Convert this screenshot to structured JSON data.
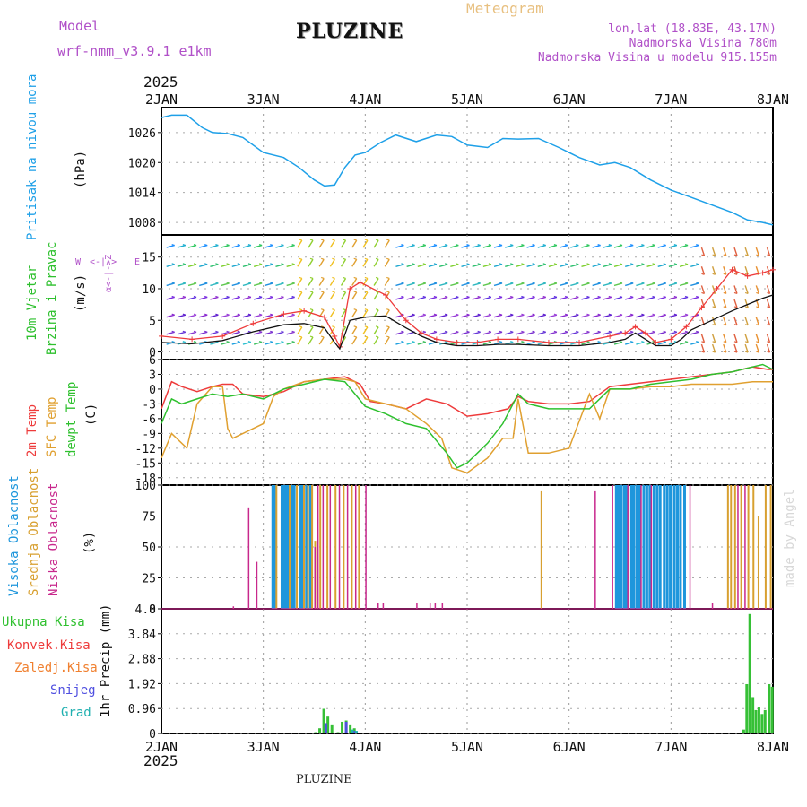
{
  "header": {
    "model_label": "Model",
    "model_name": "wrf-nmm_v3.9.1  e1km",
    "title": "PLUZINE",
    "product": "Meteogram",
    "lonlat": "lon,lat (18.83E, 43.17N)",
    "elevation": "Nadmorska Visina 780m",
    "model_elevation": "Nadmorska Visina u modelu 915.155m",
    "footer_title": "PLUZINE",
    "watermark": "made by Angel"
  },
  "time_axis": {
    "year": "2025",
    "ticks": [
      "2JAN",
      "3JAN",
      "4JAN",
      "5JAN",
      "6JAN",
      "7JAN",
      "8JAN"
    ]
  },
  "colors": {
    "pressure": "#1ea0e8",
    "temp2m": "#ee3b3b",
    "sfc_temp": "#e0a030",
    "dewpoint": "#2ec02e",
    "high_cloud": "#1e96dc",
    "mid_cloud": "#d8a030",
    "low_cloud": "#c8288c",
    "total_precip": "#36c036",
    "conv_precip": "#ee3b3b",
    "snow": "#5050e0",
    "graupel": "#20b0b0",
    "label_purple": "#b050c8"
  },
  "chart_data": [
    {
      "type": "line",
      "panel": "pressure",
      "ylabel_left": "Pritisak na nivou mora",
      "unit": "(hPa)",
      "ylim": [
        1005.5,
        1031
      ],
      "yticks": [
        "1026",
        "1020",
        "1014",
        "1008"
      ],
      "series": [
        {
          "x": [
            0,
            0.1,
            0.25,
            0.4,
            0.5,
            0.65,
            0.8,
            1.0,
            1.2,
            1.35,
            1.5,
            1.6,
            1.7,
            1.8,
            1.9,
            2.0,
            2.15,
            2.3,
            2.5,
            2.7,
            2.85,
            3.0,
            3.2,
            3.35,
            3.5,
            3.7,
            3.9,
            4.1,
            4.3,
            4.45,
            4.6,
            4.8,
            5.0,
            5.2,
            5.4,
            5.6,
            5.75,
            5.9,
            6.0
          ],
          "y": [
            1029,
            1029.5,
            1029.5,
            1027,
            1026,
            1025.8,
            1025,
            1022,
            1021,
            1019,
            1016.5,
            1015.3,
            1015.5,
            1019,
            1021.5,
            1022,
            1024,
            1025.5,
            1024.2,
            1025.5,
            1025.2,
            1023.5,
            1023,
            1024.8,
            1024.7,
            1024.8,
            1023,
            1021,
            1019.5,
            1020,
            1019,
            1016.5,
            1014.5,
            1013,
            1011.5,
            1010,
            1008.5,
            1008,
            1007.5
          ]
        }
      ]
    },
    {
      "type": "line",
      "panel": "wind",
      "ylabel_left": [
        "10m Vjetar",
        "Brzina i Pravac"
      ],
      "unit": "(m/s)",
      "compass_labels": [
        "W",
        "<-|->",
        "E"
      ],
      "compass_vertical": "α<-|->Z",
      "ylim": [
        -1.2,
        18.5
      ],
      "yticks": [
        "15",
        "10",
        "5",
        "0"
      ],
      "series": [
        {
          "name": "speed",
          "x": [
            0,
            0.3,
            0.6,
            0.9,
            1.2,
            1.4,
            1.6,
            1.7,
            1.75,
            1.85,
            2.0,
            2.2,
            2.4,
            2.55,
            2.7,
            2.9,
            3.1,
            3.3,
            3.5,
            3.8,
            4.1,
            4.4,
            4.55,
            4.65,
            4.75,
            4.85,
            5.0,
            5.1,
            5.2,
            5.4,
            5.6,
            5.75,
            5.9,
            6.0
          ],
          "y": [
            1.5,
            1.3,
            1.8,
            3.2,
            4.3,
            4.5,
            3.8,
            1.5,
            0.5,
            5.0,
            5.5,
            5.7,
            3.8,
            2.5,
            1.5,
            1.0,
            1.0,
            1.2,
            1.2,
            1.0,
            1.0,
            1.5,
            2.0,
            3.0,
            2.0,
            1.0,
            1.0,
            2.0,
            3.5,
            5.0,
            6.5,
            7.5,
            8.5,
            9.0
          ]
        },
        {
          "name": "gust",
          "x": [
            0,
            0.3,
            0.6,
            0.9,
            1.2,
            1.4,
            1.6,
            1.7,
            1.75,
            1.85,
            1.95,
            2.2,
            2.4,
            2.55,
            2.7,
            2.9,
            3.1,
            3.3,
            3.5,
            3.8,
            4.1,
            4.4,
            4.55,
            4.65,
            4.75,
            4.85,
            5.0,
            5.15,
            5.3,
            5.45,
            5.6,
            5.75,
            5.9,
            6.0
          ],
          "y": [
            2.5,
            2.0,
            2.5,
            4.5,
            6.0,
            6.5,
            5.5,
            2.5,
            0.8,
            10.0,
            11.0,
            9.0,
            5.0,
            3.0,
            2.0,
            1.5,
            1.5,
            2.0,
            2.0,
            1.5,
            1.5,
            2.5,
            3.0,
            4.0,
            3.0,
            1.5,
            2.0,
            4.0,
            7.0,
            10.0,
            13.0,
            12.0,
            12.5,
            13.0
          ]
        }
      ]
    },
    {
      "type": "line",
      "panel": "temperature",
      "ylabel_left": [
        "2m Temp",
        "SFC Temp",
        "dewpt Temp"
      ],
      "unit": "(C)",
      "ylim": [
        -19.5,
        6
      ],
      "yticks": [
        "6",
        "3",
        "0",
        "-3",
        "-6",
        "-9",
        "-12",
        "-15",
        "-18"
      ],
      "series": [
        {
          "name": "2m Temp",
          "x": [
            0,
            0.1,
            0.2,
            0.35,
            0.5,
            0.6,
            0.7,
            0.8,
            1.0,
            1.2,
            1.4,
            1.6,
            1.8,
            1.95,
            2.05,
            2.2,
            2.4,
            2.6,
            2.8,
            3.0,
            3.2,
            3.4,
            3.5,
            3.6,
            3.8,
            4.0,
            4.2,
            4.4,
            4.6,
            4.8,
            5.0,
            5.2,
            5.4,
            5.6,
            5.8,
            5.95,
            6.0
          ],
          "y": [
            -4,
            1.5,
            0.5,
            -0.5,
            0.5,
            1,
            1,
            -1,
            -1.5,
            -0.5,
            1.5,
            2,
            2.5,
            1,
            -2.5,
            -3,
            -4,
            -2,
            -3,
            -5.5,
            -5,
            -4,
            -1.5,
            -2.5,
            -3,
            -3,
            -2.5,
            0.5,
            1,
            1.5,
            2,
            2.5,
            3,
            3.5,
            4.5,
            4,
            4
          ]
        },
        {
          "name": "SFC Temp",
          "x": [
            0,
            0.1,
            0.25,
            0.35,
            0.5,
            0.6,
            0.65,
            0.7,
            0.8,
            0.9,
            1.0,
            1.1,
            1.2,
            1.4,
            1.6,
            1.8,
            1.9,
            2.0,
            2.2,
            2.4,
            2.6,
            2.75,
            2.85,
            3.0,
            3.2,
            3.35,
            3.45,
            3.5,
            3.6,
            3.8,
            4.0,
            4.2,
            4.3,
            4.4,
            4.6,
            4.8,
            5.0,
            5.2,
            5.4,
            5.6,
            5.8,
            6.0
          ],
          "y": [
            -14,
            -9,
            -12,
            -3,
            0.5,
            0.5,
            -8,
            -10,
            -9,
            -8,
            -7,
            -1.5,
            0,
            1.5,
            2,
            2,
            1.5,
            -2,
            -3,
            -4,
            -7,
            -10,
            -16,
            -17,
            -14,
            -10,
            -10,
            -2,
            -13,
            -13,
            -12,
            -1,
            -6,
            0,
            0,
            0.5,
            0.5,
            1,
            1,
            1,
            1.5,
            1.5
          ]
        },
        {
          "name": "dewpt Temp",
          "x": [
            0,
            0.1,
            0.2,
            0.35,
            0.5,
            0.65,
            0.8,
            1.0,
            1.2,
            1.4,
            1.6,
            1.8,
            2.0,
            2.2,
            2.4,
            2.6,
            2.8,
            2.9,
            3.0,
            3.2,
            3.35,
            3.5,
            3.6,
            3.8,
            4.0,
            4.2,
            4.4,
            4.6,
            4.8,
            5.0,
            5.2,
            5.4,
            5.6,
            5.8,
            5.9,
            6.0
          ],
          "y": [
            -7,
            -2,
            -3,
            -2,
            -1,
            -1.5,
            -1,
            -2,
            0,
            1,
            2,
            1.5,
            -3.5,
            -5,
            -7,
            -8,
            -13,
            -16,
            -15,
            -11,
            -7,
            -1,
            -3,
            -4,
            -4,
            -4,
            0,
            0,
            1,
            1.5,
            2,
            3,
            3.5,
            4.5,
            5,
            4
          ]
        }
      ]
    },
    {
      "type": "bar",
      "panel": "clouds",
      "ylabel_left": [
        "Visoka Oblacnost",
        "Srednja Oblacnost",
        "Niska Oblacnost"
      ],
      "unit": "(%)",
      "ylim": [
        0,
        100
      ],
      "yticks": [
        "100",
        "75",
        "50",
        "25",
        "0"
      ],
      "series": [
        {
          "name": "Visoka Oblacnost",
          "x": [
            1.08,
            1.1,
            1.17,
            1.19,
            1.21,
            1.23,
            1.27,
            1.29,
            1.35,
            1.37,
            1.41,
            1.45,
            4.45,
            4.47,
            4.5,
            4.53,
            4.55,
            4.6,
            4.62,
            4.65,
            4.68,
            4.72,
            4.75,
            4.78,
            4.82,
            4.85,
            4.88,
            4.92,
            4.95,
            4.98,
            5.02,
            5.05,
            5.08,
            5.12
          ],
          "y": [
            100,
            100,
            100,
            100,
            100,
            100,
            100,
            100,
            100,
            100,
            100,
            100,
            100,
            100,
            100,
            100,
            100,
            100,
            100,
            100,
            100,
            100,
            100,
            100,
            100,
            100,
            100,
            100,
            100,
            100,
            100,
            100,
            100,
            100
          ]
        },
        {
          "name": "Srednja Oblacnost",
          "x": [
            1.12,
            1.25,
            1.32,
            1.39,
            1.43,
            1.47,
            1.5,
            1.55,
            1.62,
            1.7,
            1.78,
            1.86,
            1.93,
            3.72,
            5.55,
            5.58,
            5.62,
            5.68,
            5.75,
            5.8,
            5.85,
            5.92,
            5.97
          ],
          "y": [
            100,
            100,
            100,
            100,
            100,
            100,
            55,
            100,
            100,
            100,
            100,
            100,
            100,
            95,
            100,
            100,
            100,
            100,
            100,
            100,
            75,
            100,
            100
          ]
        },
        {
          "name": "Niska Oblacnost",
          "x": [
            0.7,
            0.85,
            0.93,
            1.5,
            1.53,
            1.58,
            1.65,
            1.74,
            1.82,
            1.9,
            2.0,
            2.12,
            2.17,
            2.5,
            2.63,
            2.68,
            2.75,
            4.25,
            4.42,
            4.57,
            4.7,
            4.8,
            5.18,
            5.4,
            5.65,
            5.72
          ],
          "y": [
            2,
            82,
            38,
            50,
            100,
            100,
            100,
            100,
            100,
            100,
            100,
            5,
            5,
            5,
            5,
            5,
            5,
            95,
            100,
            100,
            100,
            100,
            100,
            5,
            100,
            100
          ]
        }
      ]
    },
    {
      "type": "bar",
      "panel": "precipitation",
      "ylabel_left": [
        "Ukupna Kisa",
        "Konvek.Kisa",
        "Zaledj.Kisa",
        "Snijeg",
        "Grad"
      ],
      "unit": "1hr Precip (mm)",
      "ylim": [
        0,
        4.8
      ],
      "yticks": [
        "4.8",
        "3.84",
        "2.88",
        "1.92",
        "0.96",
        "0"
      ],
      "series": [
        {
          "name": "Ukupna Kisa",
          "x": [
            1.5,
            1.54,
            1.58,
            1.62,
            1.66,
            1.72,
            1.76,
            1.8,
            1.84,
            1.88,
            5.7,
            5.73,
            5.76,
            5.79,
            5.82,
            5.85,
            5.88,
            5.91,
            5.95,
            5.98
          ],
          "y": [
            0.05,
            0.2,
            0.95,
            0.65,
            0.35,
            0.05,
            0.45,
            0.5,
            0.35,
            0.2,
            0.15,
            1.9,
            4.6,
            1.4,
            0.9,
            1.0,
            0.75,
            0.9,
            1.9,
            1.8
          ]
        },
        {
          "name": "Snijeg",
          "x": [
            1.6,
            1.8,
            1.88
          ],
          "y": [
            0.4,
            0.45,
            0.1
          ]
        },
        {
          "name": "Grad",
          "x": [
            1.86,
            1.9
          ],
          "y": [
            0.15,
            0.1
          ]
        }
      ]
    }
  ]
}
